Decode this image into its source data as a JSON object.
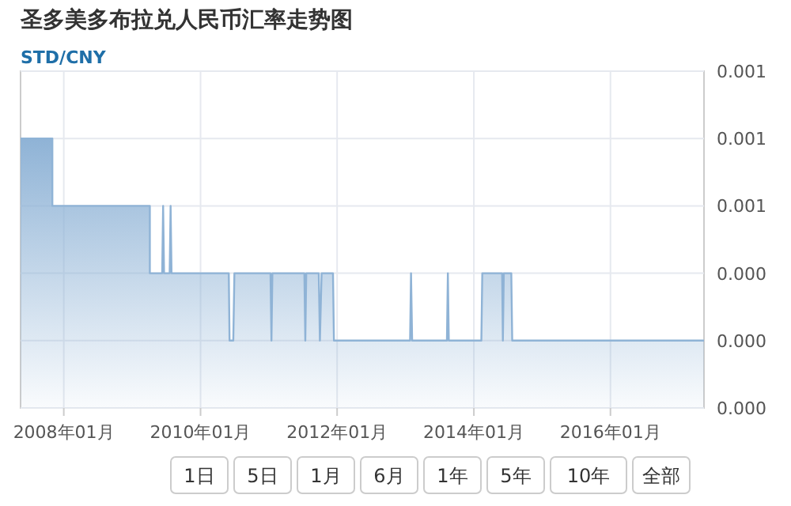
{
  "chart_data": {
    "type": "area",
    "title": "圣多美多布拉兑人民币汇率走势图",
    "subtitle": "STD/CNY",
    "x": [
      "2007-05-15",
      "2007-11-01",
      "2007-11-01",
      "2009-04-05",
      "2009-04-05",
      "2009-06-10",
      "2009-06-15",
      "2009-06-20",
      "2009-07-20",
      "2009-07-25",
      "2009-07-30",
      "2010-06-01",
      "2010-06-05",
      "2010-06-25",
      "2010-07-01",
      "2011-01-10",
      "2011-01-15",
      "2011-01-20",
      "2011-07-10",
      "2011-07-15",
      "2011-07-20",
      "2011-09-25",
      "2011-10-01",
      "2011-10-10",
      "2011-12-10",
      "2011-12-15",
      "2013-01-25",
      "2013-01-30",
      "2013-02-05",
      "2013-08-10",
      "2013-08-15",
      "2013-08-20",
      "2014-02-10",
      "2014-02-15",
      "2014-06-01",
      "2014-06-05",
      "2014-06-10",
      "2014-07-20",
      "2014-07-25",
      "2017-05-15"
    ],
    "series": [
      {
        "color": "#8fb3d6",
        "values": [
          0.0008,
          0.0008,
          0.0006,
          0.0006,
          0.0004,
          0.0004,
          0.0006,
          0.0004,
          0.0004,
          0.0006,
          0.0004,
          0.0004,
          0.0002,
          0.0002,
          0.0004,
          0.0004,
          0.0002,
          0.0004,
          0.0004,
          0.0002,
          0.0004,
          0.0004,
          0.0002,
          0.0004,
          0.0004,
          0.0002,
          0.0002,
          0.0004,
          0.0002,
          0.0002,
          0.0004,
          0.0002,
          0.0002,
          0.0004,
          0.0004,
          0.0002,
          0.0004,
          0.0004,
          0.0002,
          0.0002
        ]
      }
    ],
    "xlim": [
      "2007-05-15",
      "2017-05-15"
    ],
    "xticks": [
      {
        "value": "2008-01-01",
        "label": "2008年01月"
      },
      {
        "value": "2010-01-01",
        "label": "2010年01月"
      },
      {
        "value": "2012-01-01",
        "label": "2012年01月"
      },
      {
        "value": "2014-01-01",
        "label": "2014年01月"
      },
      {
        "value": "2016-01-01",
        "label": "2016年01月"
      }
    ],
    "ylim": [
      0,
      0.001
    ],
    "yticks": [
      {
        "value": 0,
        "label": "0.000"
      },
      {
        "value": 0.0002,
        "label": "0.000"
      },
      {
        "value": 0.0004,
        "label": "0.000"
      },
      {
        "value": 0.0006,
        "label": "0.001"
      },
      {
        "value": 0.0008,
        "label": "0.001"
      },
      {
        "value": 0.001,
        "label": "0.001"
      }
    ],
    "grid": true,
    "annotations": [
      "1日",
      "5日",
      "1月",
      "6月",
      "1年",
      "5年",
      "10年",
      "全部"
    ]
  }
}
